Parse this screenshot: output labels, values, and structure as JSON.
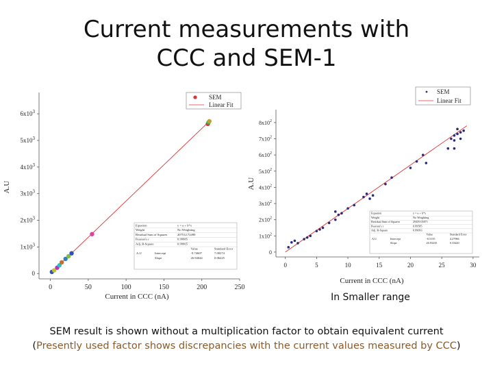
{
  "title_line1": "Current measurements with",
  "title_line2": "CCC and SEM-1",
  "caption": "In Smaller range",
  "footnote_line1": "SEM result is shown without a multiplication factor to obtain equivalent current",
  "footnote_line2_paren_open": "(",
  "footnote_line2_colored": "Presently used factor shows discrepancies with the current values measured by ",
  "footnote_line2_ccc": "CCC",
  "footnote_line2_paren_close": ")",
  "chart_data": [
    {
      "type": "scatter",
      "xlabel": "Current in CCC (nA)",
      "ylabel": "A.U",
      "xlim": [
        -15,
        250
      ],
      "ylim": [
        -200,
        6800
      ],
      "xticks": [
        "0",
        "50",
        "100",
        "150",
        "200",
        "250"
      ],
      "yticks": [
        {
          "base": "0",
          "exp": ""
        },
        {
          "base": "1x10",
          "exp": "3"
        },
        {
          "base": "2x10",
          "exp": "3"
        },
        {
          "base": "3x10",
          "exp": "3"
        },
        {
          "base": "4x10",
          "exp": "3"
        },
        {
          "base": "5x10",
          "exp": "3"
        },
        {
          "base": "6x10",
          "exp": "3"
        }
      ],
      "legend": {
        "position": "top-right",
        "entries": [
          "SEM",
          "Linear Fit"
        ]
      },
      "fit": {
        "x": [
          0,
          210
        ],
        "y": [
          0,
          5720
        ]
      },
      "series": [
        {
          "name": "SEM",
          "x": [
            2,
            5,
            9,
            12,
            15,
            20,
            24,
            28,
            55,
            208,
            209,
            210
          ],
          "y": [
            60,
            120,
            220,
            310,
            420,
            550,
            650,
            760,
            1480,
            5620,
            5680,
            5720
          ],
          "colors": [
            "#3050c0",
            "#c0c030",
            "#c030c0",
            "#30c0c0",
            "#c07030",
            "#3080c0",
            "#80c040",
            "#3050c0",
            "#e040a0",
            "#e03030",
            "#40b040",
            "#c0a030"
          ]
        }
      ],
      "stats_table": {
        "rows": [
          [
            "Equation",
            "y = a + b*x"
          ],
          [
            "Weight",
            "No Weighting"
          ],
          [
            "Residual Sum of Squares",
            "207512.72490"
          ],
          [
            "Pearson's r",
            "0.99985"
          ],
          [
            "Adj. R-Square",
            "0.99965"
          ]
        ],
        "param_header": [
          "",
          "",
          "Value",
          "Standard Error"
        ],
        "params": [
          [
            "A.U",
            "Intercept",
            "-9.74607",
            "7.00274"
          ],
          [
            "",
            "Slope",
            "26.94044",
            "0.06225"
          ]
        ]
      }
    },
    {
      "type": "scatter",
      "xlabel": "Current in CCC (nA)",
      "ylabel": "A.U",
      "xlim": [
        -1.5,
        31
      ],
      "ylim": [
        -30,
        880
      ],
      "xticks": [
        "0",
        "5",
        "10",
        "15",
        "20",
        "25",
        "30"
      ],
      "yticks": [
        {
          "base": "0",
          "exp": ""
        },
        {
          "base": "1x10",
          "exp": "2"
        },
        {
          "base": "2x10",
          "exp": "2"
        },
        {
          "base": "3x10",
          "exp": "2"
        },
        {
          "base": "4x10",
          "exp": "2"
        },
        {
          "base": "5x10",
          "exp": "2"
        },
        {
          "base": "6x10",
          "exp": "2"
        },
        {
          "base": "7x10",
          "exp": "2"
        },
        {
          "base": "8x10",
          "exp": "2"
        }
      ],
      "legend": {
        "position": "top-right",
        "entries": [
          "SEM",
          "Linear Fit"
        ]
      },
      "fit": {
        "x": [
          0,
          29
        ],
        "y": [
          0,
          780
        ]
      },
      "series": [
        {
          "name": "SEM",
          "x": [
            0.5,
            1.0,
            1.5,
            2.0,
            3.0,
            3.5,
            4.0,
            5.0,
            5.5,
            6.0,
            7.0,
            8.0,
            8.0,
            8.5,
            9.0,
            10.0,
            11.0,
            12.5,
            13.0,
            13.5,
            14.0,
            16.0,
            17.0,
            20.0,
            21.0,
            22.0,
            22.5,
            26.0,
            26.5,
            27.0,
            27.0,
            27.5,
            27.5,
            28.0,
            28.0,
            28.5,
            27.0
          ],
          "y": [
            30,
            60,
            70,
            55,
            80,
            90,
            100,
            130,
            140,
            150,
            180,
            200,
            250,
            230,
            240,
            270,
            290,
            340,
            360,
            330,
            350,
            420,
            460,
            520,
            560,
            600,
            550,
            640,
            700,
            720,
            690,
            730,
            760,
            740,
            700,
            750,
            640
          ]
        }
      ],
      "stats_table": {
        "rows": [
          [
            "Equation",
            "y = a + b*x"
          ],
          [
            "Weight",
            "No Weighting"
          ],
          [
            "Residual Sum of Squares",
            "29459.05071"
          ],
          [
            "Pearson's r",
            "0.99585"
          ],
          [
            "Adj. R-Square",
            "0.99093"
          ]
        ],
        "param_header": [
          "",
          "",
          "Value",
          "Standard Error"
        ],
        "params": [
          [
            "A.U",
            "Intercept",
            "-0.5135",
            "4.27966"
          ],
          [
            "",
            "Slope",
            "26.93235",
            "0.33420"
          ]
        ]
      }
    }
  ]
}
